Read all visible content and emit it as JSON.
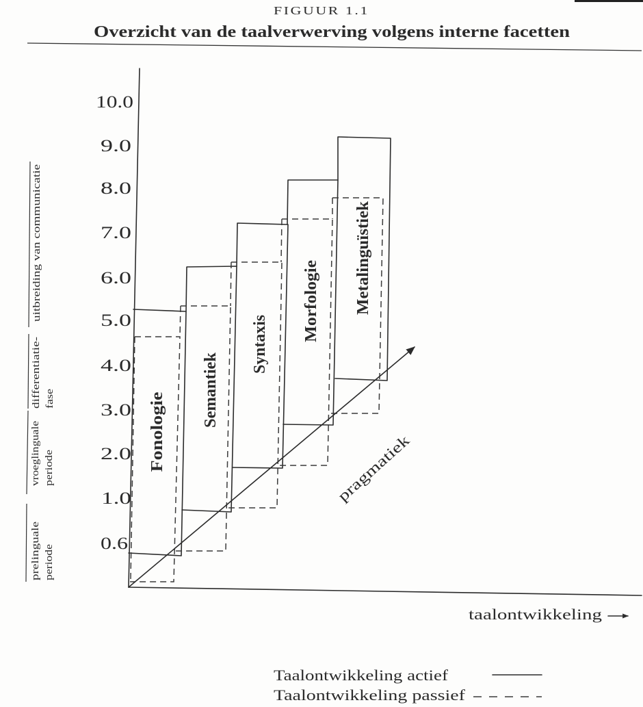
{
  "figure": {
    "label": "FIGUUR 1.1",
    "title": "Overzicht van de taalverwerving volgens interne facetten"
  },
  "y_axis": {
    "ticks": [
      "10.0",
      "9.0",
      "8.0",
      "7.0",
      "6.0",
      "5.0",
      "4.0",
      "3.0",
      "2.0",
      "1.0",
      "0.6"
    ]
  },
  "periods": [
    {
      "lines": [
        "prelinguale",
        "periode"
      ]
    },
    {
      "lines": [
        "vroeglinguale",
        "periode"
      ]
    },
    {
      "lines": [
        "differentiatie-",
        "fase"
      ]
    },
    {
      "lines": [
        "uitbreiding van communicatie"
      ]
    }
  ],
  "facets": [
    "Fonologie",
    "Semantiek",
    "Syntaxis",
    "Morfologie",
    "Metalinguïstiek"
  ],
  "diagonal": {
    "label": "pragmatiek"
  },
  "x_axis": {
    "label": "taalontwikkeling",
    "arrow_icon": "arrow-right-icon"
  },
  "legend": [
    {
      "label": "Taalontwikkeling actief"
    },
    {
      "label": "Taalontwikkeling passief"
    }
  ]
}
